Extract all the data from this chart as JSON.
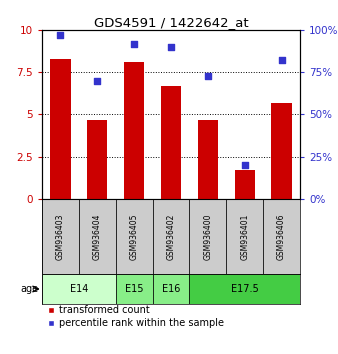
{
  "title": "GDS4591 / 1422642_at",
  "samples": [
    "GSM936403",
    "GSM936404",
    "GSM936405",
    "GSM936402",
    "GSM936400",
    "GSM936401",
    "GSM936406"
  ],
  "bar_values": [
    8.3,
    4.7,
    8.1,
    6.7,
    4.7,
    1.7,
    5.7
  ],
  "dot_values": [
    97,
    70,
    92,
    90,
    73,
    20,
    82
  ],
  "bar_color": "#cc0000",
  "dot_color": "#3333cc",
  "age_groups": [
    {
      "label": "E14",
      "cols": [
        0,
        1
      ],
      "color": "#ccffcc"
    },
    {
      "label": "E15",
      "cols": [
        2
      ],
      "color": "#88ee88"
    },
    {
      "label": "E16",
      "cols": [
        3
      ],
      "color": "#88ee88"
    },
    {
      "label": "E17.5",
      "cols": [
        4,
        5,
        6
      ],
      "color": "#44cc44"
    }
  ],
  "left_yticks": [
    0,
    2.5,
    5,
    7.5,
    10
  ],
  "right_yticks": [
    0,
    25,
    50,
    75,
    100
  ],
  "left_tick_color": "#cc0000",
  "right_tick_color": "#3333cc",
  "sample_box_color": "#cccccc",
  "legend_items": [
    {
      "label": "transformed count",
      "color": "#cc0000"
    },
    {
      "label": "percentile rank within the sample",
      "color": "#3333cc"
    }
  ]
}
